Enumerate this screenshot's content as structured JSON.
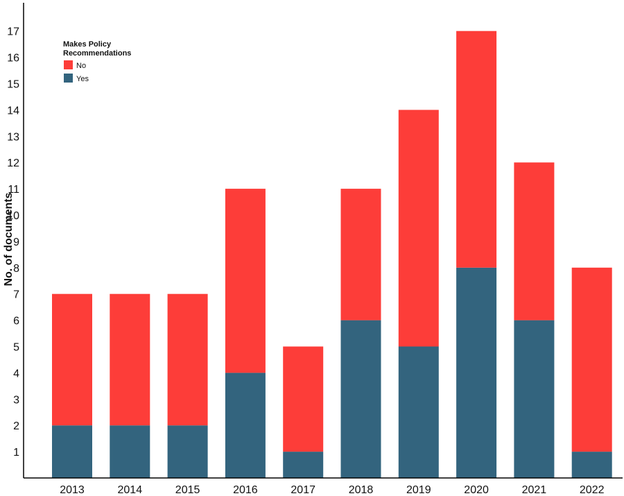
{
  "chart_data": {
    "type": "bar",
    "stacked": true,
    "categories": [
      "2013",
      "2014",
      "2015",
      "2016",
      "2017",
      "2018",
      "2019",
      "2020",
      "2021",
      "2022"
    ],
    "series": [
      {
        "name": "Yes",
        "color": "#33647e",
        "values": [
          2,
          2,
          2,
          4,
          1,
          6,
          5,
          8,
          6,
          1
        ]
      },
      {
        "name": "No",
        "color": "#fd3d39",
        "values": [
          5,
          5,
          5,
          7,
          4,
          5,
          9,
          9,
          6,
          7
        ]
      }
    ],
    "totals": [
      7,
      7,
      7,
      11,
      5,
      11,
      14,
      17,
      12,
      8
    ],
    "ylabel": "No. of documents",
    "xlabel": "",
    "ylim": [
      0,
      18
    ],
    "yticks": [
      1,
      2,
      3,
      4,
      5,
      6,
      7,
      8,
      9,
      10,
      11,
      12,
      13,
      14,
      15,
      16,
      17
    ],
    "grid": false,
    "legend": {
      "title_lines": [
        "Makes Policy",
        "Recommendations"
      ],
      "placement": "top-left",
      "items": [
        {
          "label": "No",
          "color": "#fd3d39"
        },
        {
          "label": "Yes",
          "color": "#33647e"
        }
      ]
    }
  }
}
